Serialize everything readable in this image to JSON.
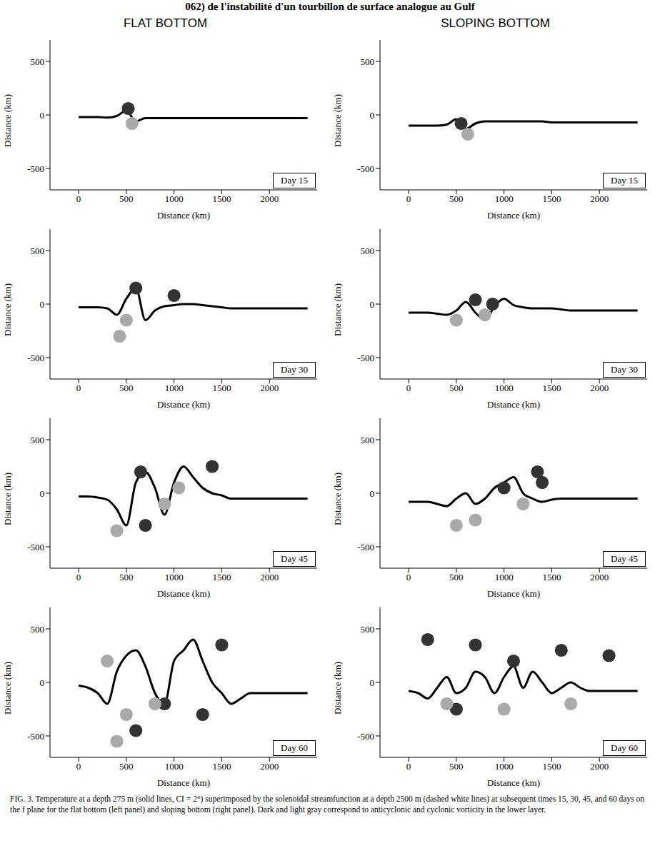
{
  "header": "062) de l'instabilité d'un tourbillon de surface analogue au Gulf",
  "columns": [
    "FLAT BOTTOM",
    "SLOPING BOTTOM"
  ],
  "caption": "FIG. 3. Temperature at a depth 275 m (solid lines, CI = 2°) superimposed by the solenoidal streamfunction at a depth 2500 m (dashed white lines) at subsequent times 15, 30, 45, and 60 days on the f plane for the flat bottom (left panel) and sloping bottom (right panel). Dark and light gray correspond to anticyclonic and cyclonic vorticity in the lower layer.",
  "chart_data": [
    {
      "type": "line",
      "label": "Day 15",
      "xlabel": "Distance (km)",
      "ylabel": "Distance (km)",
      "xlim": [
        -300,
        2500
      ],
      "ylim": [
        -700,
        700
      ],
      "xticks": [
        0,
        500,
        1000,
        1500,
        2000
      ],
      "yticks": [
        -500,
        0,
        500
      ],
      "x": [
        0,
        100,
        200,
        300,
        400,
        500,
        600,
        700,
        800,
        900,
        1000,
        1100,
        1200,
        1300,
        1400,
        1500,
        1600,
        1700,
        1800,
        1900,
        2000,
        2100,
        2200,
        2300,
        2400
      ],
      "series": [
        {
          "type": "line",
          "color": "#000000",
          "values": [
            -20,
            -20,
            -20,
            -25,
            -10,
            40,
            -60,
            -30,
            -30,
            -30,
            -30,
            -30,
            -30,
            -30,
            -30,
            -30,
            -30,
            -30,
            -30,
            -30,
            -30,
            -30,
            -30,
            -30,
            -30
          ]
        },
        {
          "type": "scatter",
          "color": "#333333",
          "x": [
            520
          ],
          "values": [
            60
          ]
        },
        {
          "type": "scatter",
          "color": "#aaaaaa",
          "x": [
            560
          ],
          "values": [
            -80
          ]
        }
      ]
    },
    {
      "type": "line",
      "label": "Day 30",
      "xlabel": "Distance (km)",
      "ylabel": "Distance (km)",
      "xlim": [
        -300,
        2500
      ],
      "ylim": [
        -700,
        700
      ],
      "xticks": [
        0,
        500,
        1000,
        1500,
        2000
      ],
      "yticks": [
        -500,
        0,
        500
      ],
      "x": [
        0,
        100,
        200,
        300,
        400,
        500,
        600,
        700,
        800,
        900,
        1000,
        1100,
        1200,
        1300,
        1400,
        1500,
        1600,
        1700,
        1800,
        1900,
        2000,
        2100,
        2200,
        2300,
        2400
      ],
      "series": [
        {
          "type": "line",
          "color": "#000000",
          "values": [
            -30,
            -30,
            -30,
            -40,
            -100,
            50,
            150,
            -150,
            -60,
            -20,
            -10,
            0,
            0,
            -10,
            -20,
            -30,
            -40,
            -40,
            -40,
            -40,
            -40,
            -40,
            -40,
            -40,
            -40
          ]
        },
        {
          "type": "scatter",
          "color": "#333333",
          "x": [
            600,
            1000
          ],
          "values": [
            150,
            80
          ]
        },
        {
          "type": "scatter",
          "color": "#aaaaaa",
          "x": [
            500,
            430
          ],
          "values": [
            -150,
            -300
          ]
        }
      ]
    },
    {
      "type": "line",
      "label": "Day 45",
      "xlabel": "Distance (km)",
      "ylabel": "Distance (km)",
      "xlim": [
        -300,
        2500
      ],
      "ylim": [
        -700,
        700
      ],
      "xticks": [
        0,
        500,
        1000,
        1500,
        2000
      ],
      "yticks": [
        -500,
        0,
        500
      ],
      "x": [
        0,
        100,
        200,
        300,
        400,
        500,
        600,
        700,
        800,
        900,
        1000,
        1100,
        1200,
        1300,
        1400,
        1500,
        1600,
        1700,
        1800,
        1900,
        2000,
        2100,
        2200,
        2300,
        2400
      ],
      "series": [
        {
          "type": "line",
          "color": "#000000",
          "values": [
            -30,
            -30,
            -40,
            -60,
            -150,
            -300,
            100,
            200,
            50,
            -200,
            100,
            250,
            150,
            50,
            0,
            -20,
            -50,
            -50,
            -50,
            -50,
            -50,
            -50,
            -50,
            -50,
            -50
          ]
        },
        {
          "type": "scatter",
          "color": "#333333",
          "x": [
            650,
            1400,
            700
          ],
          "values": [
            200,
            250,
            -300
          ]
        },
        {
          "type": "scatter",
          "color": "#aaaaaa",
          "x": [
            400,
            900,
            1050
          ],
          "values": [
            -350,
            -100,
            50
          ]
        }
      ]
    },
    {
      "type": "line",
      "label": "Day 60",
      "xlabel": "Distance (km)",
      "ylabel": "Distance (km)",
      "xlim": [
        -300,
        2500
      ],
      "ylim": [
        -700,
        700
      ],
      "xticks": [
        0,
        500,
        1000,
        1500,
        2000
      ],
      "yticks": [
        -500,
        0,
        500
      ],
      "x": [
        0,
        100,
        200,
        300,
        400,
        500,
        600,
        700,
        800,
        900,
        1000,
        1100,
        1200,
        1300,
        1400,
        1500,
        1600,
        1700,
        1800,
        1900,
        2000,
        2100,
        2200,
        2300,
        2400
      ],
      "series": [
        {
          "type": "line",
          "color": "#000000",
          "values": [
            -30,
            -50,
            -100,
            -200,
            100,
            250,
            300,
            150,
            -100,
            -200,
            200,
            300,
            400,
            200,
            0,
            -100,
            -200,
            -150,
            -100,
            -100,
            -100,
            -100,
            -100,
            -100,
            -100
          ]
        },
        {
          "type": "scatter",
          "color": "#333333",
          "x": [
            1500,
            600,
            1300,
            900
          ],
          "values": [
            350,
            -450,
            -300,
            -200
          ]
        },
        {
          "type": "scatter",
          "color": "#aaaaaa",
          "x": [
            300,
            500,
            800,
            400
          ],
          "values": [
            200,
            -300,
            -200,
            -550
          ]
        }
      ]
    },
    {
      "type": "line",
      "label": "Day 15",
      "xlabel": "Distance (km)",
      "ylabel": "Distance (km)",
      "xlim": [
        -300,
        2500
      ],
      "ylim": [
        -700,
        700
      ],
      "xticks": [
        0,
        500,
        1000,
        1500,
        2000
      ],
      "yticks": [
        -500,
        0,
        500
      ],
      "x": [
        0,
        100,
        200,
        300,
        400,
        500,
        600,
        700,
        800,
        900,
        1000,
        1100,
        1200,
        1300,
        1400,
        1500,
        1600,
        1700,
        1800,
        1900,
        2000,
        2100,
        2200,
        2300,
        2400
      ],
      "series": [
        {
          "type": "line",
          "color": "#000000",
          "values": [
            -100,
            -100,
            -100,
            -100,
            -90,
            -40,
            -130,
            -80,
            -60,
            -60,
            -60,
            -60,
            -60,
            -60,
            -60,
            -70,
            -70,
            -70,
            -70,
            -70,
            -70,
            -70,
            -70,
            -70,
            -70
          ]
        },
        {
          "type": "scatter",
          "color": "#333333",
          "x": [
            550
          ],
          "values": [
            -80
          ]
        },
        {
          "type": "scatter",
          "color": "#aaaaaa",
          "x": [
            620
          ],
          "values": [
            -180
          ]
        }
      ]
    },
    {
      "type": "line",
      "label": "Day 30",
      "xlabel": "Distance (km)",
      "ylabel": "Distance (km)",
      "xlim": [
        -300,
        2500
      ],
      "ylim": [
        -700,
        700
      ],
      "xticks": [
        0,
        500,
        1000,
        1500,
        2000
      ],
      "yticks": [
        -500,
        0,
        500
      ],
      "x": [
        0,
        100,
        200,
        300,
        400,
        500,
        600,
        700,
        800,
        900,
        1000,
        1100,
        1200,
        1300,
        1400,
        1500,
        1600,
        1700,
        1800,
        1900,
        2000,
        2100,
        2200,
        2300,
        2400
      ],
      "series": [
        {
          "type": "line",
          "color": "#000000",
          "values": [
            -80,
            -80,
            -80,
            -90,
            -100,
            -60,
            20,
            -80,
            -150,
            -20,
            50,
            -10,
            -30,
            -40,
            -40,
            -40,
            -50,
            -60,
            -60,
            -60,
            -60,
            -60,
            -60,
            -60,
            -60
          ]
        },
        {
          "type": "scatter",
          "color": "#333333",
          "x": [
            700,
            880
          ],
          "values": [
            40,
            0
          ]
        },
        {
          "type": "scatter",
          "color": "#aaaaaa",
          "x": [
            500,
            800
          ],
          "values": [
            -150,
            -100
          ]
        }
      ]
    },
    {
      "type": "line",
      "label": "Day 45",
      "xlabel": "Distance (km)",
      "ylabel": "Distance (km)",
      "xlim": [
        -300,
        2500
      ],
      "ylim": [
        -700,
        700
      ],
      "xticks": [
        0,
        500,
        1000,
        1500,
        2000
      ],
      "yticks": [
        -500,
        0,
        500
      ],
      "x": [
        0,
        100,
        200,
        300,
        400,
        500,
        600,
        700,
        800,
        900,
        1000,
        1100,
        1200,
        1300,
        1400,
        1500,
        1600,
        1700,
        1800,
        1900,
        2000,
        2100,
        2200,
        2300,
        2400
      ],
      "series": [
        {
          "type": "line",
          "color": "#000000",
          "values": [
            -80,
            -80,
            -80,
            -100,
            -120,
            -50,
            0,
            -100,
            -50,
            50,
            100,
            150,
            0,
            -50,
            -80,
            -60,
            -50,
            -50,
            -50,
            -50,
            -50,
            -50,
            -50,
            -50,
            -50
          ]
        },
        {
          "type": "scatter",
          "color": "#333333",
          "x": [
            1400,
            1000,
            1350
          ],
          "values": [
            100,
            50,
            200
          ]
        },
        {
          "type": "scatter",
          "color": "#aaaaaa",
          "x": [
            700,
            500,
            1200
          ],
          "values": [
            -250,
            -300,
            -100
          ]
        }
      ]
    },
    {
      "type": "line",
      "label": "Day 60",
      "xlabel": "Distance (km)",
      "ylabel": "Distance (km)",
      "xlim": [
        -300,
        2500
      ],
      "ylim": [
        -700,
        700
      ],
      "xticks": [
        0,
        500,
        1000,
        1500,
        2000
      ],
      "yticks": [
        -500,
        0,
        500
      ],
      "x": [
        0,
        100,
        200,
        300,
        400,
        500,
        600,
        700,
        800,
        900,
        1000,
        1100,
        1200,
        1300,
        1400,
        1500,
        1600,
        1700,
        1800,
        1900,
        2000,
        2100,
        2200,
        2300,
        2400
      ],
      "series": [
        {
          "type": "line",
          "color": "#000000",
          "values": [
            -80,
            -100,
            -150,
            -50,
            50,
            -100,
            -50,
            100,
            50,
            -100,
            50,
            150,
            -50,
            100,
            0,
            -100,
            -50,
            0,
            -50,
            -80,
            -80,
            -80,
            -80,
            -80,
            -80
          ]
        },
        {
          "type": "scatter",
          "color": "#333333",
          "x": [
            200,
            700,
            1100,
            1600,
            2100,
            500
          ],
          "values": [
            400,
            350,
            200,
            300,
            250,
            -250
          ]
        },
        {
          "type": "scatter",
          "color": "#aaaaaa",
          "x": [
            1000,
            400,
            1700
          ],
          "values": [
            -250,
            -200,
            -200
          ]
        }
      ]
    }
  ]
}
